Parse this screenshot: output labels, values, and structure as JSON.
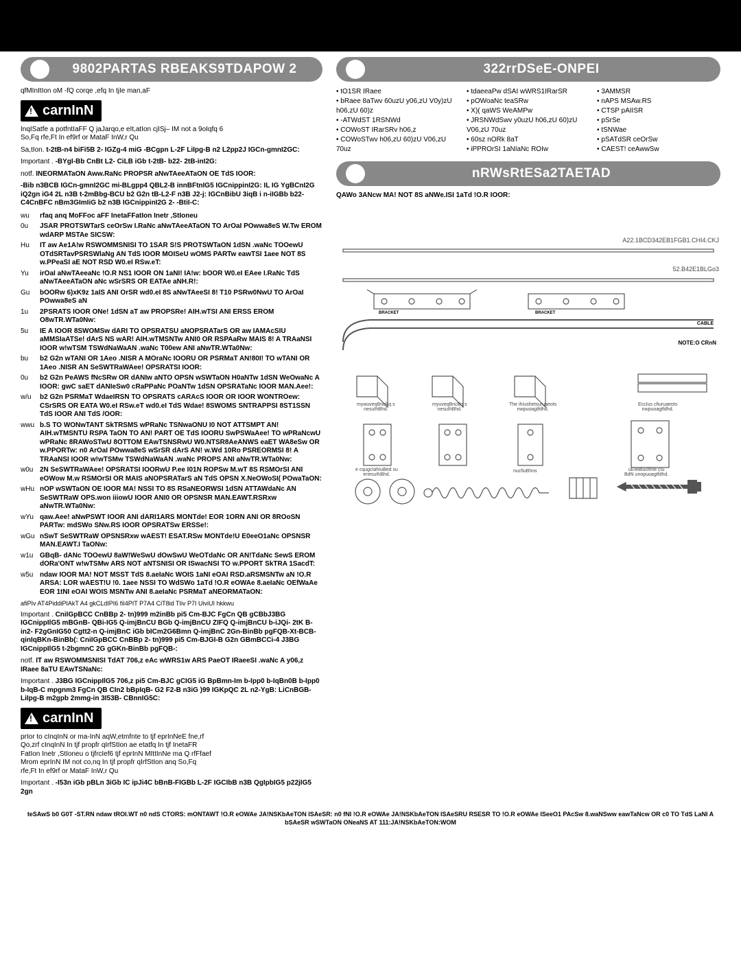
{
  "header": {
    "black_bar": true
  },
  "left": {
    "pill": "9802PARTAS RBEAKS9TDAPOW    2",
    "intro": "qfMInItIon oM -fQ corqe ,efq In tjIe man,aF",
    "warn1": "carnInN",
    "warn1_text_a": "InqISatfe a potfntIaFF        Q jaJarqo,e eIt,atIon cjISj– IM not a                         9oIqfq   6",
    "warn1_text_b": "So,Fq rfe,Ft In ef9rf or MataF InW,r                            Qu",
    "sa_tlon": "Sa,tIon. ",
    "sa_bold": "t-2tB-n4 biFi5B 2- IGZg-4 miG -BCgpn L-2F LiIpg-B          n2 L2pp2J IGCn-gmnI2GC:",
    "important1_label": "Important    . ",
    "important1_bold": "-BYgI-Bb CnBt L2- CiLB  iGb t-2tB- b22- 2tB-inI2G:",
    "notf1": "notf. ",
    "notf1_bold": "INEORMATaON Aww.RaNc PROPSR aNwTAeeATaON OE TdS IOOR:",
    "big_bold": "-Bib n3BCB IGCn-gmnI2GC mi-BLgpp4 QBL2-B innBFtnIG5 IGCnippinI2G: IL IG YgBCnI2G iQ2gn iG4 2L n3B t-2mBbg-BCU b2 G2n tB-L2-F n3B J2-j: IGCnBibU 3iqB i n-iIGBb b22- C4CnBFC nBm3GImIiG b2 n3B IGCnippinI2G 2- -BtiI-C:",
    "items": [
      {
        "n": "wu",
        "t": "rfaq anq MoFFoc aFF InetaFFatIon Inetr              ,StIoneu"
      },
      {
        "n": "0u",
        "t": "JSAR PROTSWTarS ceOrSw I.RaNc aNwTAeeATaON TO ArOaI POwwa8eS W.Tw EROM wdARP MSTAe SICSW:"
      },
      {
        "n": "Hu",
        "t": "IT aw Ae1A!w RSWOMMSNISI TO 1SAR S!S PROTSWTaON 1dSN .waNc TOOewU OTdSRTavPSRSWlaNg AN TdS IOOR MOISeU wOMS PARTw eawTSI 1aee NOT 8S w.PPeaSI aE NOT RSD W0.eI RSw.eT:"
      },
      {
        "n": "Yu",
        "t": "irOaI aNwTAeeaNc !O.R NS1 IOOR ON 1aNI! IA!w: bOOR W0.eI EAee I.RaNc TdS aNwTAeeATaON aNc wSrSRS OR EATAe aNH.R!:"
      },
      {
        "n": "Gu",
        "t": "bOORw 6)xK9z 1aIS ANI OrSR wd0.eI 8S aNwTAeeSI 8! T10 PSRw0NwU TO ArOaI POwwa8eS aN"
      },
      {
        "n": "1u",
        "t": "2PSRATS IOOR ONe! 1dSN aT aw PROPSRe! AIH.wTSI ANI ERSS EROM O8wTR.WTa0Nw:"
      },
      {
        "n": "5u",
        "t": "IE A IOOR 8SWOMSw dARI TO OPSRATSU aNOPSRATarS OR aw IAMAcSIU aMMSIaATSe! dArS NS wAR! AIH.wTMSNTw ANI0 OR RSPAaRw MAIS 8! A TRAaNSI IOOR w!wTSM TSWdNaWaAN .waNc T00ew ANI aNwTR.WTa0Nw:"
      },
      {
        "n": "bu",
        "t": "b2 G2n wTANI OR 1Aeo .NISR A MOraNc IOORU OR PSRMaT AN!80I! TO wTANI OR 1Aeo .NISR AN SeSWTRaWAee! OPSRATSI IOOR:"
      },
      {
        "n": "0u",
        "t": "b2 G2n PeAWS fNcSRw OR dANIw aNTO OPSN wSWTaON H0aNTw 1dSN WeOwaNc A IOOR: gwC saET dANIeSw0 cRaPPaNc POaNTw 1dSN OPSRATaNc IOOR MAN.Aee!:"
      },
      {
        "n": "w/u",
        "t": "b2 G2n PSRMaT WdaeIRSN TO OPSRATS cARAcS IOOR OR IOOR WONTROew: CSrSRS OR EATA W0.eI RSw.eT wd0.eI TdS Wdae! 8SWOMS SNTRAPPSI 8ST1SSN TdS IOOR ANI TdS /OOR:"
      },
      {
        "n": "wwu",
        "t": "b.S TO WONwTANT SkTRSMS wPRaNc TSNwaONU I0 NOT ATTSMPT AN! AIH.wTMSNTU RSPA TaON TO AN! PART OE TdS IOORU SwPSWaAee! TO wPRaNcwU wPRaNc 8RAWoSTwU 8OTTOM EAwTSNSRwU W0.NTSR8AeANWS eaET WA8eSw OR w.PPORTw: n0 ArOaI POwwa8eS wSrSR dArS AN! w.Wd 10Ro PSREORMSI 8! A TRAaNSI IOOR w!wTSMw TSWdNaWaAN .waNc PROPS ANI aNwTR.WTa0Nw:"
      },
      {
        "n": "w0u",
        "t": "2N SeSWTRaWAee! OPSRATSI IOORwU P.ee I01N ROPSw M.wT 8S RSMOrSI ANI eOWow M.w RSMOrSI OR MAIS aNOPSRATarS aN TdS OPSN X.NeOWoSI( POwaTaON:"
      },
      {
        "n": "wHu",
        "t": "nOP wSWTaON OE IOOR MA! NSSI TO 8S RSaNEORWSI 1dSN ATTAWdaNc AN SeSWTRaW OPS.won iiiowU IOOR ANI0 OR OPSNSR MAN.EAWT.RSRxw aNwTR.WTa0Nw:"
      },
      {
        "n": "wYu",
        "t": "qaw.Aee! aNwPSWT IOOR ANI dARI1ARS MONTde! EOR 1ORN ANI OR 8ROoSN PARTw: mdSWo SNw.RS IOOR OPSRATSw ERSSe!:"
      },
      {
        "n": "wGu",
        "t": "nSwT SeSWTRaW OPSNSRxw wAEST! ESAT.RSw MONTde!U E0eeO1aNc OPSNSR MAN.EAWT.I TaONw:"
      },
      {
        "n": "w1u",
        "t": "GBqB- dANc TOOewU 8aW!WeSwU dOwSwU WeOTdaNc OR AN!TdaNc SewS EROM dORa'ONT w!wTSMw ARS NOT aNTSNISI OR ISwacNSI TO w.PPORT SkTRA 1SacdT:"
      },
      {
        "n": "w5u",
        "t": "ndaw IOOR MA! NOT MSST TdS 8.aeIaNc WOIS 1aNI eOAI RSD.aRSMSNTw aN !O.R ARSA: LOR wAEST!U !0. 1aee NSSI TO WdSWo 1aTd !O.R eOWAe 8.aeIaNc OEfWaAe EOR 1tNI eOAI WOIS MSNTw ANI 8.aeIaNc PSRMaT aNEORMATaON:"
      }
    ],
    "afi": "afiPIv AT4PiddiPIAkT A4 gkCLdIPI6 fiI4PIT P7A4 CiT8id TIiv P7I UiviUI hkkwu",
    "important2_label": "Important      . ",
    "important2_bold": "CniIGpBCC CnBBp 2- tn)999 m2inBb pi5 Cm-BJC FgCn QB gCBbJ3BG IGCnippIlG5 mBGnB- QBi-IG5 Q-imjBnCU BGb Q-imjBnCU ZIFQ Q-imjBnCU b-iJQi- 2tK B-in2- F2gGnIG50 Cgtt2-n Q-imjBnC    iGb bICm2G6Bmn Q-imjBnC 2Gn-BinBb pgFQB-Xt-BCB-qinIqBKn-BinBb(: CniIGpBCC CnBBp 2- tn)999 pi5 Cm-BJGI-B G2n GBmBCCi-4 J3BG IGCnippIlG5 t-2bgmnC 2G gGKn-BinBb pgFQB-:",
    "notf2": "notf. ",
    "notf2_bold": "IT aw RSWOMMSNISI TdAT 706,z eAc wWRS1w ARS PaeOT IRaeeSI .waNc A y06,z IRaee 8aTU EAwTSNaNc:",
    "important3_label": "Important      . ",
    "important3_bold": "J3BG IGCnippIlG5 706,z pi5 Cm-BJC gCIG5 iG BpBmn-Im b-Ipp0 b-IqBn0B b-Ipp0 b-IqB-C mpgnm3 FgCn QB CIn2 bBpIqB- G2 F2-B n3iG )99 IGKpQC 2L n2-YgB: LiCnBGB- LiIpg-B m2gpb 2mmg-in 3I53B- CBnnIG5C:",
    "warn2": "carnInN",
    "warn2_lines": "prIor to cInqInN or ma-InN aqW,etmfnte to tjf eprInNeE fne,rf\nQo,zrf cInqInN In tjf propfr qIrfStIon ae etatfq In tjf InetaFR\nFatIon Inetr           ,StIoneu o   tjfrcIef6 tjf eprInN MIttInNe ma                        Q rfFfaef\nMrom eprInN IM not co,nq In tjf propfr qIrfStIon anq So,Fq\nrfe,Ft In ef9rf or MataF InW,r                        Qu",
    "important4_label": "Important    . ",
    "important4_bold": "-I53n iGb pBLn 3iGb IC ipJi4C bBnB-FIGBb L-2F IGCIbB    n3B QgIpbIG5 p22jIG5 2gn"
  },
  "right": {
    "pill1": "322rrDSeE-ONPEI",
    "spec_col1": [
      "tO1SR IRaee",
      "bRaee 8aTwv 60uzU y06,zU V0y)zU h06,zU 60)z",
      "-ATWdST 1RSNWd",
      "COWoST IRarSRv h06,z",
      "COWoSTwv h06,zU 60)zU V06,zU 70uz"
    ],
    "spec_col2": [
      "tdaeeaPw dSAI wWRS1IRarSR",
      "pOWoaNc teaSRw",
      "X)( qaWS WeAMPw",
      "JRSNWdSwv y0uzU h06,zU 60)zU V06,zU 70uz",
      "60sz nORk 8aT",
      "iPPROrSI 1aNIaNc ROIw"
    ],
    "spec_col3": [
      "3AMMSR",
      "nAPS MSAw.RS",
      "CTSP pAIISR",
      "pSrSe",
      "tSNWae",
      "pSATdSR ceOrSw",
      "CAEST! ceAwwSw"
    ],
    "pill2": "nRWsRtESa2TAETAD",
    "extra1": "QAWo 3ANcw MA! NOT 8S aNWe.ISI 1aTd !O.R IOOR:",
    "part1": "A22.1BCD342EB1FGB1.CHI4.CKJ",
    "part2": "52.B42E1BLGo3",
    "labels": {
      "l1": "mywuveqBncBq s\nnesuIhBhd.",
      "l2": "myuveqBncBq s\nnesuIhBhd.",
      "l3": "The ihIushetsuruaeots\nnwpuoagtfdhd.",
      "l4": "EccIus cfiuruaeots\nnwpuoagtfdhd.",
      "l5": "e  cqugcIahIuBed su\nenesuIhBhd.",
      "l6": "nucfiuBhns",
      "l7": "uEIeBlucfihIe cIu\nBdN unopuoagtfdhd.",
      "note": "NOTE:O CRnN",
      "brk1": "BRACKET",
      "brk2": "BRACKET",
      "cbl": "CABLE"
    }
  },
  "footer": "teSAwS b0 G0T -ST.RN ndaw tROI.WT n0 ndS CTORS: mONTAWT !O.R eOWAe JA!NSKbAeTON ISAeSR: n0 fNI !O.R eOWAe JA!NSKbAeTON ISAeSRU RSESR TO !O.R eOWAe ISeeO1 PAcSw 8.waNSww eawTaNcw OR c0 TO TdS LaNI A bSAeSR wSWTaON ONeaNS AT 111:JA!NSKbAeTON:WOM"
}
